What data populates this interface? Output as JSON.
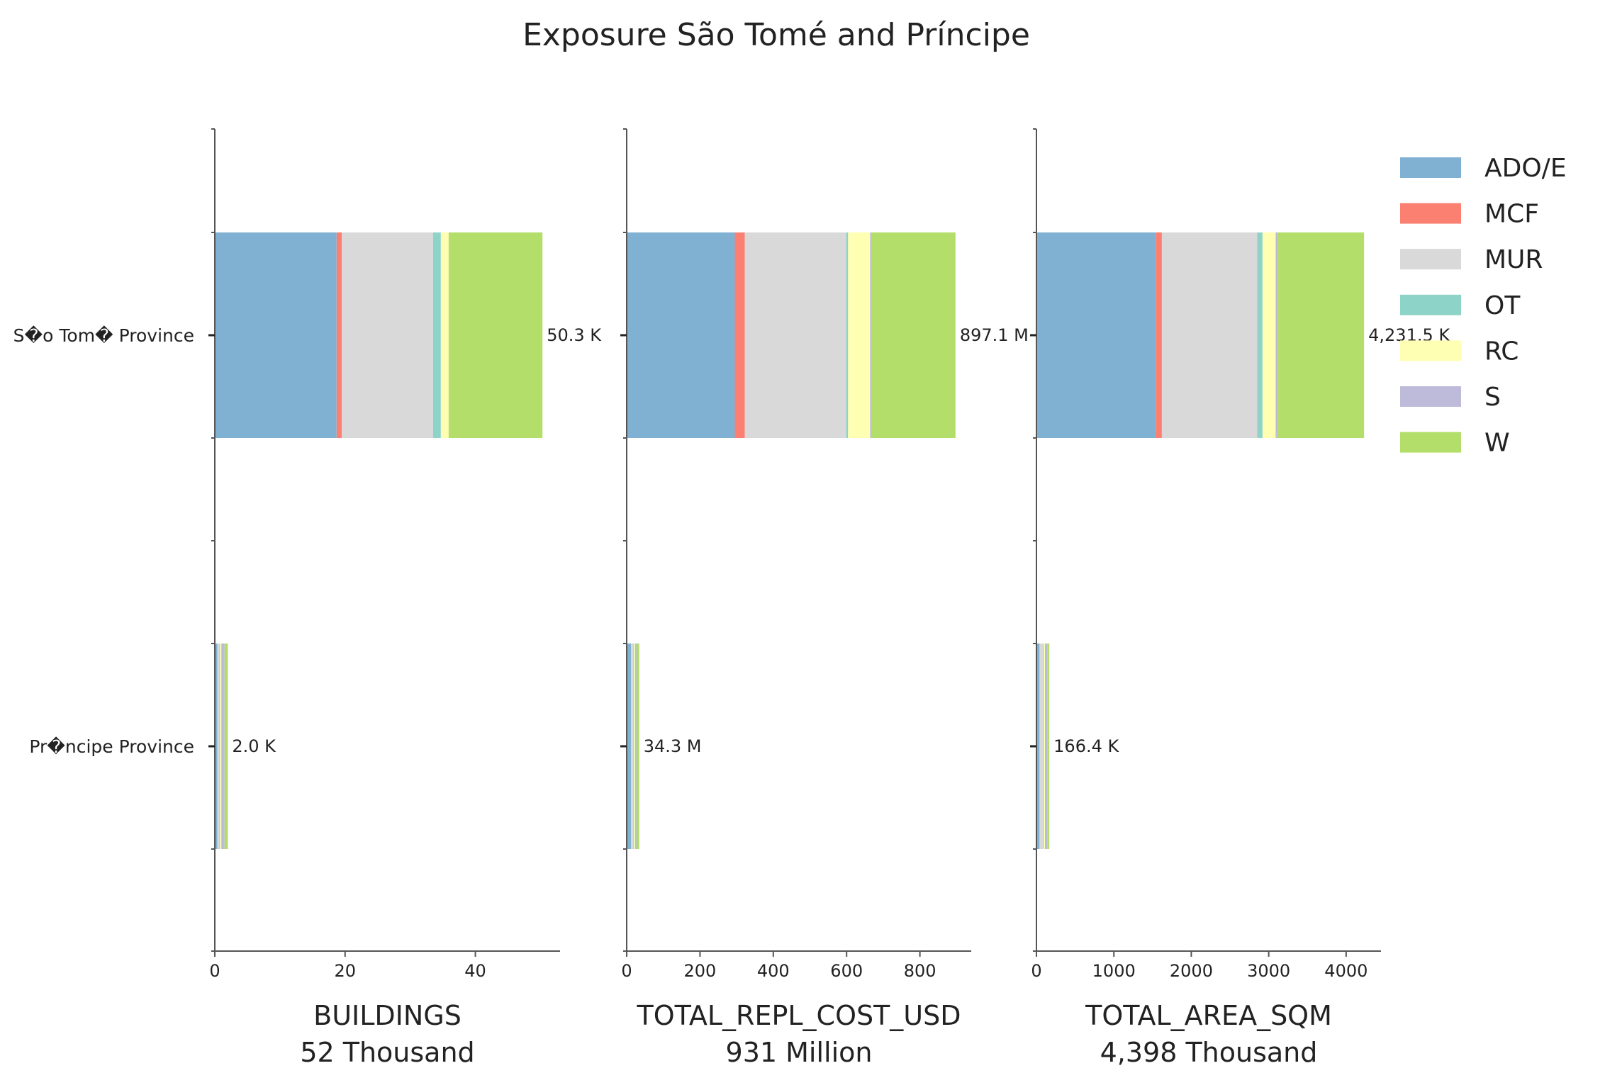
{
  "chart_data": {
    "type": "bar",
    "orientation": "horizontal",
    "stacked": true,
    "title": "Exposure São Tomé and Príncipe",
    "categories": [
      "S�o Tom� Province",
      "Pr�ncipe Province"
    ],
    "legend": {
      "placement": "top-right",
      "entries": [
        "ADO/E",
        "MCF",
        "MUR",
        "OT",
        "RC",
        "S",
        "W"
      ]
    },
    "series_colors": {
      "ADO/E": "#80b1d3",
      "MCF": "#fb8072",
      "MUR": "#d9d9d9",
      "OT": "#8dd3c7",
      "RC": "#ffffb3",
      "S": "#bebada",
      "W": "#b3de69"
    },
    "panels": [
      {
        "xlabel": "BUILDINGS",
        "total_label": "52 Thousand",
        "xlim": [
          0,
          53
        ],
        "xticks": [
          0,
          20,
          40
        ],
        "xtick_labels": [
          "0",
          "20",
          "40"
        ],
        "segments": [
          {
            "ADO/E": 18.7,
            "MCF": 0.8,
            "MUR": 14.0,
            "OT": 1.2,
            "RC": 1.2,
            "S": 0.0,
            "W": 14.4
          },
          {
            "ADO/E": 0.4,
            "MCF": 0.0,
            "MUR": 0.3,
            "OT": 0.1,
            "RC": 0.2,
            "S": 0.5,
            "W": 0.5
          }
        ],
        "totals": [
          50.3,
          2.0
        ],
        "total_labels": [
          "50.3 K",
          "2.0 K"
        ]
      },
      {
        "xlabel": "TOTAL_REPL_COST_USD",
        "total_label": "931 Million",
        "xlim": [
          0,
          940
        ],
        "xticks": [
          0,
          200,
          400,
          600,
          800
        ],
        "xtick_labels": [
          "0",
          "200",
          "400",
          "600",
          "800"
        ],
        "segments": [
          {
            "ADO/E": 295,
            "MCF": 27,
            "MUR": 277,
            "OT": 5,
            "RC": 60,
            "S": 3,
            "W": 230.1
          },
          {
            "ADO/E": 12,
            "MCF": 0,
            "MUR": 6,
            "OT": 2,
            "RC": 3,
            "S": 4,
            "W": 7.3
          }
        ],
        "totals": [
          897.1,
          34.3
        ],
        "total_labels": [
          "897.1 M",
          "34.3 M"
        ]
      },
      {
        "xlabel": "TOTAL_AREA_SQM",
        "total_label": "4,398 Thousand",
        "xlim": [
          0,
          4450
        ],
        "xticks": [
          0,
          1000,
          2000,
          3000,
          4000
        ],
        "xtick_labels": [
          "0",
          "1000",
          "2000",
          "3000",
          "4000"
        ],
        "segments": [
          {
            "ADO/E": 1540,
            "MCF": 80,
            "MUR": 1230,
            "OT": 70,
            "RC": 170,
            "S": 30,
            "W": 1111.5
          },
          {
            "ADO/E": 40,
            "MCF": 0,
            "MUR": 45,
            "OT": 10,
            "RC": 15,
            "S": 30,
            "W": 26.4
          }
        ],
        "totals": [
          4231.5,
          166.4
        ],
        "total_labels": [
          "4,231.5 K",
          "166.4 K"
        ]
      }
    ]
  }
}
